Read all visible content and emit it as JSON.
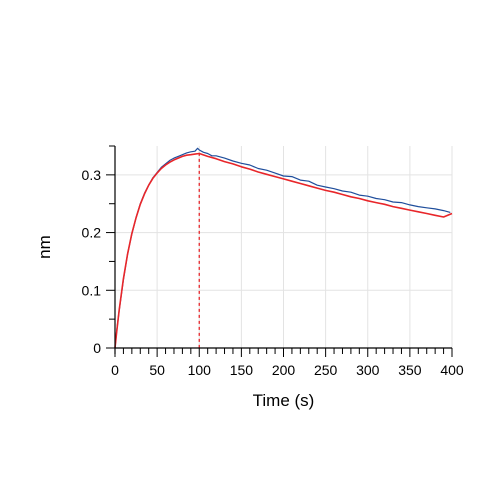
{
  "chart_data": {
    "type": "line",
    "xlabel": "Time (s)",
    "ylabel": "nm",
    "xlim": [
      0,
      400
    ],
    "ylim": [
      0,
      0.35
    ],
    "x_ticks": [
      0,
      50,
      100,
      150,
      200,
      250,
      300,
      350,
      400
    ],
    "x_tick_labels": [
      "0",
      "50",
      "100",
      "150",
      "200",
      "250",
      "300",
      "350",
      "400"
    ],
    "y_ticks": [
      0,
      0.1,
      0.2,
      0.3
    ],
    "y_tick_labels": [
      "0",
      "0.1",
      "0.2",
      "0.3"
    ],
    "grid": true,
    "marker_line": {
      "x": 100,
      "color": "#e8262a",
      "style": "dashed"
    },
    "series": [
      {
        "role": "measured",
        "color": "#1f4e9c",
        "x": [
          0,
          2,
          5,
          10,
          15,
          20,
          25,
          30,
          35,
          40,
          45,
          50,
          55,
          60,
          65,
          70,
          75,
          80,
          85,
          90,
          95,
          98,
          100,
          105,
          110,
          115,
          120,
          130,
          140,
          150,
          160,
          170,
          180,
          190,
          200,
          210,
          220,
          230,
          240,
          250,
          260,
          270,
          280,
          290,
          300,
          310,
          320,
          330,
          340,
          350,
          360,
          370,
          380,
          390,
          398
        ],
        "y": [
          0.0,
          0.03,
          0.065,
          0.118,
          0.163,
          0.197,
          0.226,
          0.25,
          0.268,
          0.282,
          0.295,
          0.304,
          0.313,
          0.319,
          0.325,
          0.329,
          0.332,
          0.335,
          0.338,
          0.34,
          0.341,
          0.346,
          0.343,
          0.339,
          0.337,
          0.333,
          0.333,
          0.329,
          0.324,
          0.32,
          0.317,
          0.311,
          0.308,
          0.303,
          0.298,
          0.297,
          0.291,
          0.289,
          0.282,
          0.279,
          0.276,
          0.272,
          0.27,
          0.265,
          0.263,
          0.259,
          0.257,
          0.253,
          0.252,
          0.248,
          0.245,
          0.243,
          0.241,
          0.238,
          0.235
        ]
      },
      {
        "role": "fit",
        "color": "#e8262a",
        "x": [
          0,
          2,
          5,
          10,
          15,
          20,
          25,
          30,
          35,
          40,
          45,
          50,
          55,
          60,
          65,
          70,
          75,
          80,
          85,
          90,
          95,
          100,
          110,
          120,
          130,
          140,
          150,
          160,
          170,
          180,
          190,
          200,
          210,
          220,
          230,
          240,
          250,
          260,
          270,
          280,
          290,
          300,
          310,
          320,
          330,
          340,
          350,
          360,
          370,
          380,
          390,
          400
        ],
        "y": [
          0.0,
          0.028,
          0.066,
          0.12,
          0.163,
          0.198,
          0.226,
          0.249,
          0.267,
          0.282,
          0.294,
          0.303,
          0.311,
          0.317,
          0.322,
          0.326,
          0.329,
          0.332,
          0.334,
          0.335,
          0.336,
          0.337,
          0.332,
          0.328,
          0.323,
          0.319,
          0.314,
          0.31,
          0.305,
          0.301,
          0.297,
          0.293,
          0.289,
          0.285,
          0.281,
          0.277,
          0.273,
          0.27,
          0.266,
          0.262,
          0.259,
          0.255,
          0.252,
          0.249,
          0.245,
          0.242,
          0.239,
          0.236,
          0.233,
          0.23,
          0.227,
          0.233
        ]
      }
    ]
  }
}
